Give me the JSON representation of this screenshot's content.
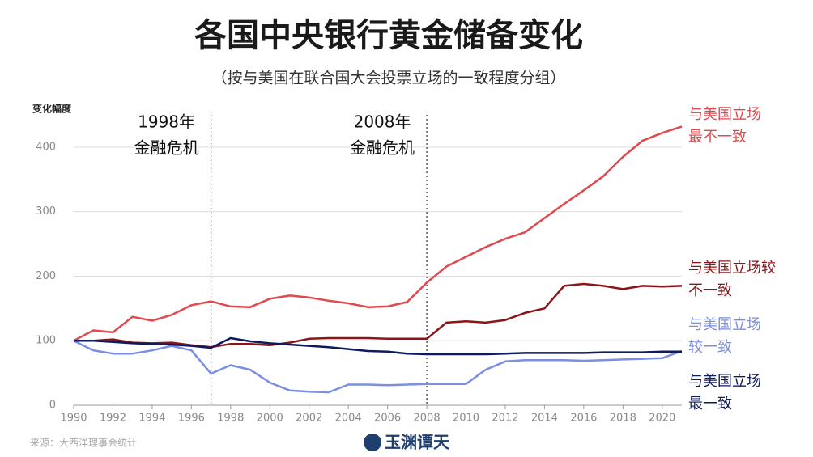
{
  "chart_data": {
    "type": "line",
    "title": "各国中央银行黄金储备变化",
    "subtitle": "（按与美国在联合国大会投票立场的一致程度分组）",
    "y_label": "变化幅度",
    "source": "来源：大西洋理事会统计",
    "logo": "玉渊谭天",
    "x": [
      1990,
      1991,
      1992,
      1993,
      1994,
      1995,
      1996,
      1997,
      1998,
      1999,
      2000,
      2001,
      2002,
      2003,
      2004,
      2005,
      2006,
      2007,
      2008,
      2009,
      2010,
      2011,
      2012,
      2013,
      2014,
      2015,
      2016,
      2017,
      2018,
      2019,
      2020,
      2021
    ],
    "xlim": [
      1990,
      2021
    ],
    "xticks": [
      1990,
      1992,
      1994,
      1996,
      1998,
      2000,
      2002,
      2004,
      2006,
      2008,
      2010,
      2012,
      2014,
      2016,
      2018,
      2020
    ],
    "ylim": [
      0,
      450
    ],
    "yticks": [
      0,
      100,
      200,
      300,
      400
    ],
    "grid": true,
    "annotations": [
      {
        "x": 1997,
        "lines": [
          "1998年",
          "金融危机"
        ]
      },
      {
        "x": 2008,
        "lines": [
          "2008年",
          "金融危机"
        ]
      }
    ],
    "series": [
      {
        "name": "与美国立场最不一致",
        "color": "#e2484d",
        "values": [
          100,
          116,
          113,
          137,
          131,
          140,
          155,
          161,
          153,
          152,
          165,
          170,
          167,
          162,
          158,
          152,
          153,
          160,
          190,
          215,
          230,
          245,
          258,
          268,
          290,
          312,
          333,
          355,
          385,
          410,
          422,
          432
        ]
      },
      {
        "name": "与美国立场较不一致",
        "color": "#8b1518",
        "values": [
          100,
          100,
          102,
          97,
          96,
          97,
          93,
          90,
          95,
          95,
          93,
          97,
          103,
          104,
          104,
          104,
          103,
          103,
          103,
          128,
          130,
          128,
          132,
          143,
          150,
          185,
          188,
          185,
          180,
          185,
          184,
          185
        ]
      },
      {
        "name": "与美国立场较一致",
        "color": "#7a8ee2",
        "values": [
          100,
          85,
          80,
          80,
          85,
          92,
          85,
          49,
          62,
          55,
          35,
          23,
          21,
          20,
          32,
          32,
          31,
          32,
          33,
          33,
          33,
          55,
          68,
          70,
          70,
          70,
          69,
          70,
          71,
          72,
          73,
          84
        ]
      },
      {
        "name": "与美国立场最一致",
        "color": "#0e1a5e",
        "values": [
          100,
          100,
          98,
          96,
          95,
          94,
          92,
          89,
          104,
          99,
          96,
          94,
          92,
          90,
          87,
          84,
          83,
          80,
          79,
          79,
          79,
          79,
          80,
          81,
          81,
          81,
          81,
          82,
          82,
          82,
          83,
          83
        ]
      }
    ]
  }
}
